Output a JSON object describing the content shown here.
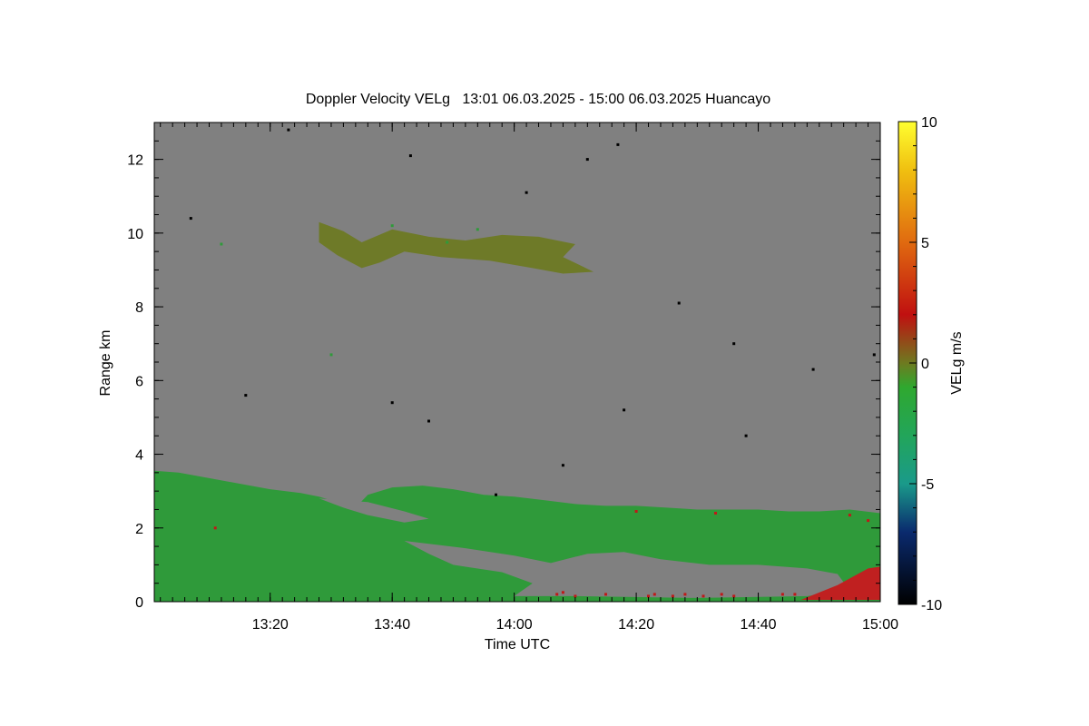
{
  "chart_data": {
    "type": "heatmap",
    "title": "Doppler Velocity VELg   13:01 06.03.2025 - 15:00 06.03.2025 Huancayo",
    "xlabel": "Time UTC",
    "ylabel": "Range km",
    "colorbar_label": "VELg m/s",
    "xlim_minutes": [
      781,
      900
    ],
    "ylim": [
      0,
      13
    ],
    "x_ticks": [
      {
        "minute": 800,
        "label": "13:20"
      },
      {
        "minute": 820,
        "label": "13:40"
      },
      {
        "minute": 840,
        "label": "14:00"
      },
      {
        "minute": 860,
        "label": "14:20"
      },
      {
        "minute": 880,
        "label": "14:40"
      },
      {
        "minute": 900,
        "label": "15:00"
      }
    ],
    "y_ticks": [
      {
        "value": 0,
        "label": "0"
      },
      {
        "value": 2,
        "label": "2"
      },
      {
        "value": 4,
        "label": "4"
      },
      {
        "value": 6,
        "label": "6"
      },
      {
        "value": 8,
        "label": "8"
      },
      {
        "value": 10,
        "label": "10"
      },
      {
        "value": 12,
        "label": "12"
      }
    ],
    "colorbar": {
      "range": [
        -10,
        10
      ],
      "ticks": [
        {
          "value": 10,
          "label": "10"
        },
        {
          "value": 5,
          "label": "5"
        },
        {
          "value": 0,
          "label": "0"
        },
        {
          "value": -5,
          "label": "-5"
        },
        {
          "value": -10,
          "label": "-10"
        }
      ],
      "stops": [
        {
          "value": -10,
          "color": "#000000"
        },
        {
          "value": -7,
          "color": "#0a2a6e"
        },
        {
          "value": -5,
          "color": "#1a9a8a"
        },
        {
          "value": -3,
          "color": "#22a55a"
        },
        {
          "value": -1,
          "color": "#2fa82f"
        },
        {
          "value": 0,
          "color": "#6e7a20"
        },
        {
          "value": 2,
          "color": "#c01010"
        },
        {
          "value": 5,
          "color": "#e06a10"
        },
        {
          "value": 8,
          "color": "#f0c010"
        },
        {
          "value": 10,
          "color": "#ffff30"
        }
      ]
    },
    "background_color": "#808080",
    "regions": [
      {
        "name": "lower-boundary-layer-echo",
        "velocity": -1.5,
        "color": "#2f9a3a",
        "top": [
          [
            781,
            3.55
          ],
          [
            785,
            3.5
          ],
          [
            790,
            3.35
          ],
          [
            795,
            3.2
          ],
          [
            800,
            3.05
          ],
          [
            805,
            2.95
          ],
          [
            808,
            2.85
          ],
          [
            812,
            2.65
          ],
          [
            814,
            2.55
          ],
          [
            816,
            2.9
          ],
          [
            820,
            3.1
          ],
          [
            825,
            3.15
          ],
          [
            830,
            3.05
          ],
          [
            835,
            2.9
          ],
          [
            840,
            2.85
          ],
          [
            845,
            2.75
          ],
          [
            850,
            2.65
          ],
          [
            855,
            2.6
          ],
          [
            860,
            2.6
          ],
          [
            865,
            2.55
          ],
          [
            870,
            2.5
          ],
          [
            875,
            2.5
          ],
          [
            880,
            2.5
          ],
          [
            885,
            2.45
          ],
          [
            890,
            2.45
          ],
          [
            895,
            2.5
          ],
          [
            900,
            2.4
          ]
        ],
        "bottom": [
          [
            781,
            0
          ],
          [
            900,
            0
          ]
        ]
      },
      {
        "name": "clear-gap-1",
        "velocity": null,
        "color": "#808080",
        "points": [
          [
            822,
            1.65
          ],
          [
            832,
            1.45
          ],
          [
            840,
            1.25
          ],
          [
            846,
            1.05
          ],
          [
            852,
            1.3
          ],
          [
            858,
            1.35
          ],
          [
            864,
            1.15
          ],
          [
            872,
            1.0
          ],
          [
            880,
            1.0
          ],
          [
            888,
            0.9
          ],
          [
            893,
            0.75
          ],
          [
            895,
            0.3
          ],
          [
            888,
            0.15
          ],
          [
            870,
            0.1
          ],
          [
            850,
            0.15
          ],
          [
            840,
            0.15
          ],
          [
            843,
            0.5
          ],
          [
            838,
            0.8
          ],
          [
            830,
            1.0
          ],
          [
            826,
            1.3
          ]
        ]
      },
      {
        "name": "clear-gap-2",
        "velocity": null,
        "color": "#808080",
        "points": [
          [
            808,
            2.8
          ],
          [
            812,
            2.55
          ],
          [
            816,
            2.35
          ],
          [
            822,
            2.15
          ],
          [
            826,
            2.25
          ],
          [
            822,
            2.45
          ],
          [
            816,
            2.7
          ]
        ]
      },
      {
        "name": "near-ground-positive-echo",
        "velocity": 2.5,
        "color": "#c02020",
        "points": [
          [
            887,
            0.05
          ],
          [
            893,
            0.45
          ],
          [
            898,
            0.9
          ],
          [
            900,
            0.95
          ],
          [
            900,
            0.05
          ]
        ]
      },
      {
        "name": "cloud-layer-9-10km",
        "velocity": -0.5,
        "color": "#6e7a28",
        "points": [
          [
            808,
            10.3
          ],
          [
            812,
            10.05
          ],
          [
            815,
            9.75
          ],
          [
            820,
            10.1
          ],
          [
            826,
            9.9
          ],
          [
            832,
            9.8
          ],
          [
            838,
            9.95
          ],
          [
            844,
            9.9
          ],
          [
            850,
            9.7
          ],
          [
            848,
            9.35
          ],
          [
            853,
            8.95
          ],
          [
            848,
            8.9
          ],
          [
            843,
            9.05
          ],
          [
            836,
            9.25
          ],
          [
            828,
            9.35
          ],
          [
            822,
            9.5
          ],
          [
            818,
            9.2
          ],
          [
            815,
            9.05
          ],
          [
            811,
            9.4
          ],
          [
            808,
            9.75
          ]
        ]
      }
    ],
    "speckles": [
      {
        "velocity": 2.5,
        "color": "#c01818",
        "points": [
          [
            847,
            0.2
          ],
          [
            848,
            0.25
          ],
          [
            850,
            0.15
          ],
          [
            855,
            0.2
          ],
          [
            862,
            0.15
          ],
          [
            863,
            0.2
          ],
          [
            866,
            0.15
          ],
          [
            868,
            0.2
          ],
          [
            871,
            0.15
          ],
          [
            874,
            0.2
          ],
          [
            876,
            0.15
          ],
          [
            884,
            0.2
          ],
          [
            886,
            0.2
          ],
          [
            791,
            2.0
          ],
          [
            860,
            2.45
          ],
          [
            873,
            2.4
          ],
          [
            895,
            2.35
          ],
          [
            898,
            2.2
          ]
        ]
      },
      {
        "velocity": -1.5,
        "color": "#2f9a3a",
        "points": [
          [
            792,
            9.7
          ],
          [
            829,
            9.75
          ],
          [
            810,
            6.7
          ],
          [
            820,
            10.2
          ],
          [
            834,
            10.1
          ]
        ]
      },
      {
        "velocity": -10,
        "color": "#000000",
        "points": [
          [
            787,
            10.4
          ],
          [
            803,
            12.8
          ],
          [
            823,
            12.1
          ],
          [
            852,
            12.0
          ],
          [
            842,
            11.1
          ],
          [
            857,
            12.4
          ],
          [
            867,
            8.1
          ],
          [
            876,
            7.0
          ],
          [
            889,
            6.3
          ],
          [
            878,
            4.5
          ],
          [
            848,
            3.7
          ],
          [
            820,
            5.4
          ],
          [
            826,
            4.9
          ],
          [
            858,
            5.2
          ],
          [
            899,
            6.7
          ],
          [
            796,
            5.6
          ],
          [
            837,
            2.9
          ]
        ]
      }
    ]
  }
}
